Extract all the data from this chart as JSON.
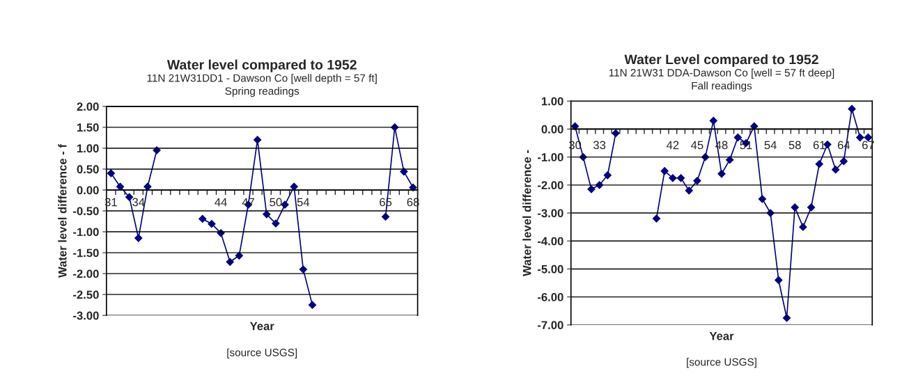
{
  "chart_data": [
    {
      "type": "line",
      "title": "Water level compared to 1952",
      "subtitle": "11N 21W31DD1 - Dawson Co [well depth = 57 ft]\nSpring readings",
      "xlabel": "Year",
      "ylabel": "Water level difference - f",
      "annotations": [
        "[source USGS]"
      ],
      "categories": [
        "31",
        null,
        null,
        "34",
        null,
        null,
        null,
        null,
        null,
        null,
        null,
        null,
        "44",
        null,
        null,
        "47",
        null,
        null,
        "50",
        null,
        null,
        "54",
        null,
        null,
        null,
        null,
        null,
        null,
        null,
        null,
        "65",
        null,
        null,
        "68"
      ],
      "values": [
        0.4,
        0.08,
        -0.17,
        -1.15,
        0.08,
        0.95,
        null,
        null,
        null,
        null,
        -0.69,
        -0.81,
        -1.03,
        -1.72,
        -1.57,
        -0.35,
        1.2,
        -0.58,
        -0.8,
        -0.35,
        0.08,
        -1.9,
        -2.75,
        null,
        null,
        null,
        null,
        null,
        null,
        null,
        -0.64,
        1.5,
        0.44,
        0.06
      ],
      "color": "#000080",
      "marker": "diamond",
      "line_style": "solid",
      "ylim": [
        -3,
        2
      ],
      "yticks": [
        {
          "value": -3,
          "label": "-3.00"
        },
        {
          "value": -2.5,
          "label": "-2.50"
        },
        {
          "value": -2,
          "label": "-2.00"
        },
        {
          "value": -1.5,
          "label": "-1.50"
        },
        {
          "value": -1,
          "label": "-1.00"
        },
        {
          "value": -0.5,
          "label": "-0.50"
        },
        {
          "value": 0,
          "label": "0.00"
        },
        {
          "value": 0.5,
          "label": "0.50"
        },
        {
          "value": 1,
          "label": "1.00"
        },
        {
          "value": 1.5,
          "label": "1.50"
        },
        {
          "value": 2,
          "label": "2.00"
        }
      ],
      "grid": "y"
    },
    {
      "type": "line",
      "title": "Water Level compared to 1952",
      "subtitle": "11N 21W31 DDA-Dawson Co [well = 57 ft deep]\nFall readings",
      "xlabel": "Year",
      "ylabel": "Water level difference -",
      "annotations": [
        "[source USGS]"
      ],
      "categories": [
        "30",
        null,
        null,
        "33",
        null,
        null,
        null,
        null,
        null,
        null,
        null,
        null,
        "42",
        null,
        null,
        "45",
        null,
        null,
        "48",
        null,
        null,
        "51",
        null,
        null,
        "54",
        null,
        null,
        "58",
        null,
        null,
        "61",
        null,
        null,
        "64",
        null,
        null,
        "67"
      ],
      "values": [
        0.1,
        -1.0,
        -2.15,
        -2.0,
        -1.65,
        -0.15,
        null,
        null,
        null,
        null,
        -3.2,
        -1.5,
        -1.75,
        -1.75,
        -2.2,
        -1.85,
        -1.0,
        0.3,
        -1.6,
        -1.1,
        -0.3,
        -0.5,
        0.1,
        -2.5,
        -3.0,
        -5.4,
        -6.75,
        -2.8,
        -3.5,
        -2.8,
        -1.25,
        -0.55,
        -1.45,
        -1.15,
        0.72,
        -0.3,
        -0.3
      ],
      "color": "#000080",
      "marker": "diamond",
      "line_style": "solid",
      "ylim": [
        -7,
        1
      ],
      "yticks": [
        {
          "value": -7,
          "label": "-7.00"
        },
        {
          "value": -6,
          "label": "-6.00"
        },
        {
          "value": -5,
          "label": "-5.00"
        },
        {
          "value": -4,
          "label": "-4.00"
        },
        {
          "value": -3,
          "label": "-3.00"
        },
        {
          "value": -2,
          "label": "-2.00"
        },
        {
          "value": -1,
          "label": "-1.00"
        },
        {
          "value": 0,
          "label": "0.00"
        },
        {
          "value": 1,
          "label": "1.00"
        }
      ],
      "grid": "y"
    }
  ]
}
